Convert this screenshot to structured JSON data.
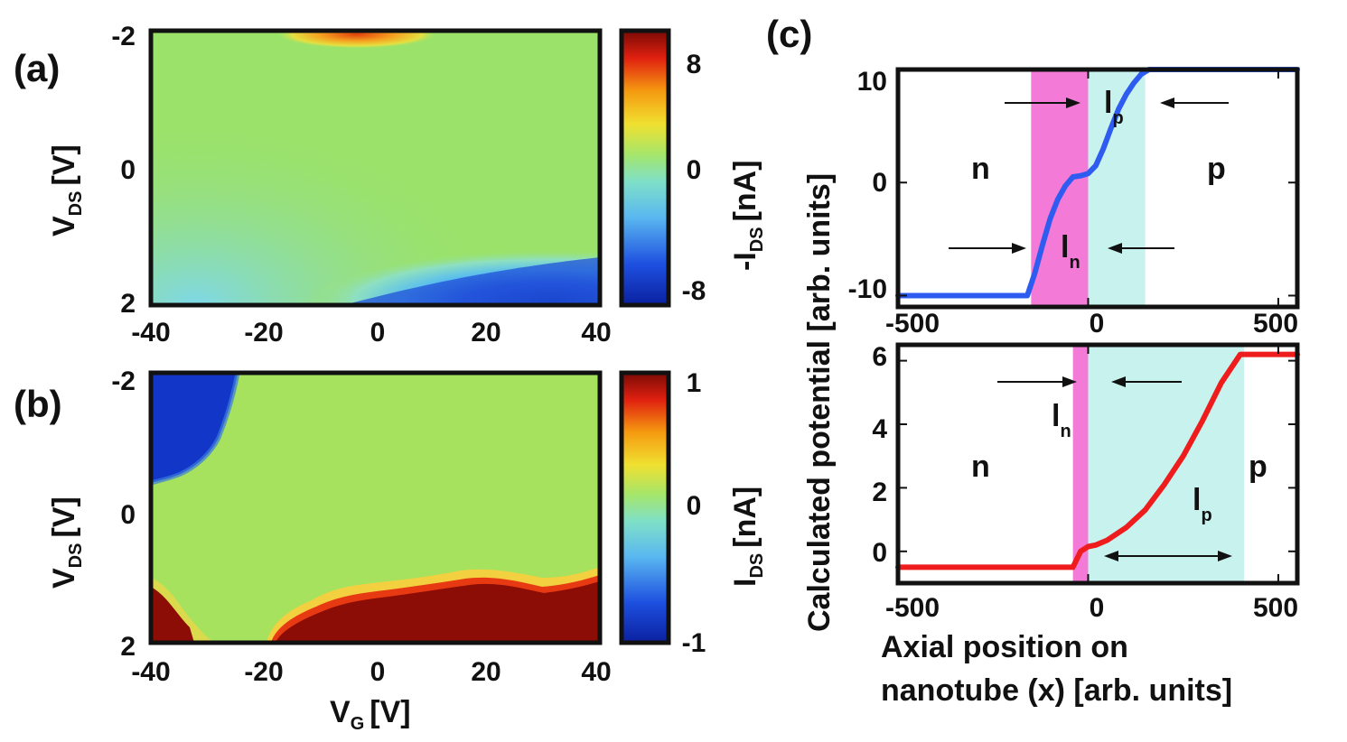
{
  "panel_labels": {
    "a": "(a)",
    "b": "(b)",
    "c": "(c)"
  },
  "colors": {
    "frame": "#111111",
    "heatmap_base": "#9be26a",
    "red_dark": "#8b0d06",
    "red": "#e01a10",
    "blue_dark": "#0a2aa8",
    "blue": "#2a5fe0",
    "cyan": "#5cc8e8",
    "pink_region": "#f47ad8",
    "cyan_region": "#c8f2ee",
    "curve_top": "#2f5cf0",
    "curve_bottom": "#ee1c1c"
  },
  "chart_data": [
    {
      "id": "a",
      "type": "heatmap",
      "title": "",
      "xlabel": {
        "main": "V",
        "sub": "G",
        "unit": "[V]"
      },
      "ylabel": {
        "main": "V",
        "sub": "DS",
        "unit": "[V]"
      },
      "xlim": [
        -40,
        40
      ],
      "ylim": [
        -2,
        2
      ],
      "x_ticks": [
        "-40",
        "-20",
        "0",
        "20",
        "40"
      ],
      "y_ticks": [
        "-2",
        "0",
        "2"
      ],
      "colorbar": {
        "label_prefix": "-I",
        "label_sub": "DS",
        "label_unit": "[nA]",
        "range": [
          -10,
          10
        ],
        "ticks": [
          "8",
          "0",
          "-8"
        ]
      },
      "features": [
        {
          "name": "positive current ridge",
          "x_range": [
            -15,
            5
          ],
          "y": -2,
          "value": 8
        },
        {
          "name": "negative current lobe",
          "x_range": [
            -5,
            40
          ],
          "y_range": [
            1,
            2
          ],
          "value": -8
        }
      ]
    },
    {
      "id": "b",
      "type": "heatmap",
      "title": "",
      "xlabel": {
        "main": "V",
        "sub": "G",
        "unit": "[V]"
      },
      "ylabel": {
        "main": "V",
        "sub": "DS",
        "unit": "[V]"
      },
      "xlim": [
        -40,
        40
      ],
      "ylim": [
        -2,
        2
      ],
      "x_ticks": [
        "-40",
        "-20",
        "0",
        "20",
        "40"
      ],
      "y_ticks": [
        "-2",
        "0",
        "2"
      ],
      "colorbar": {
        "label_prefix": "I",
        "label_sub": "DS",
        "label_unit": "[nA]",
        "range": [
          -1,
          1
        ],
        "ticks": [
          "1",
          "0",
          "-1"
        ]
      },
      "features": [
        {
          "name": "negative saturation corner",
          "x_range": [
            -40,
            -25
          ],
          "y_range": [
            -2,
            -0.7
          ],
          "value": -1
        },
        {
          "name": "positive saturation band",
          "x_range": [
            -20,
            40
          ],
          "y_range": [
            1.2,
            2
          ],
          "value": 1
        }
      ]
    },
    {
      "id": "c_top",
      "type": "line",
      "title": "",
      "xlim": [
        -500,
        550
      ],
      "ylim": [
        -11,
        10
      ],
      "x_ticks": [
        "-500",
        "0",
        "500"
      ],
      "y_ticks": [
        "10",
        "0",
        "-10"
      ],
      "series": [
        {
          "name": "potential",
          "x": [
            -500,
            -160,
            -140,
            -120,
            -100,
            -80,
            -60,
            -40,
            -20,
            0,
            20,
            40,
            60,
            80,
            100,
            120,
            140,
            160,
            550
          ],
          "y": [
            -10,
            -10,
            -8,
            -5.5,
            -3.2,
            -1.5,
            -0.3,
            0.5,
            0.6,
            0.8,
            1.5,
            3,
            4.8,
            6.5,
            7.8,
            8.8,
            9.6,
            10,
            10
          ]
        }
      ],
      "regions": [
        {
          "name": "ln region",
          "x_range": [
            -150,
            0
          ]
        },
        {
          "name": "lp region",
          "x_range": [
            0,
            150
          ]
        }
      ],
      "annotations": {
        "n": "n",
        "p": "p",
        "l_n": {
          "main": "l",
          "sub": "n"
        },
        "l_p": {
          "main": "l",
          "sub": "p"
        }
      }
    },
    {
      "id": "c_bottom",
      "type": "line",
      "title": "",
      "xlim": [
        -500,
        550
      ],
      "ylim": [
        -1,
        6.5
      ],
      "x_ticks": [
        "-500",
        "0",
        "500"
      ],
      "y_ticks": [
        "6",
        "4",
        "2",
        "0"
      ],
      "series": [
        {
          "name": "potential",
          "x": [
            -500,
            -40,
            -20,
            0,
            20,
            50,
            100,
            150,
            200,
            250,
            300,
            350,
            400,
            550
          ],
          "y": [
            -0.5,
            -0.5,
            0,
            0.15,
            0.2,
            0.35,
            0.75,
            1.3,
            2.1,
            3,
            4.1,
            5.3,
            6.2,
            6.2
          ]
        }
      ],
      "regions": [
        {
          "name": "ln region",
          "x_range": [
            -40,
            0
          ]
        },
        {
          "name": "lp region",
          "x_range": [
            0,
            410
          ]
        }
      ],
      "annotations": {
        "n": "n",
        "p": "p",
        "l_n": {
          "main": "l",
          "sub": "n"
        },
        "l_p": {
          "main": "l",
          "sub": "p"
        }
      }
    }
  ],
  "shared_labels": {
    "c_ylabel": "Calculated potential [arb. units]",
    "c_xlabel_line1": "Axial position on",
    "c_xlabel_line2": "nanotube (x) [arb. units]"
  }
}
